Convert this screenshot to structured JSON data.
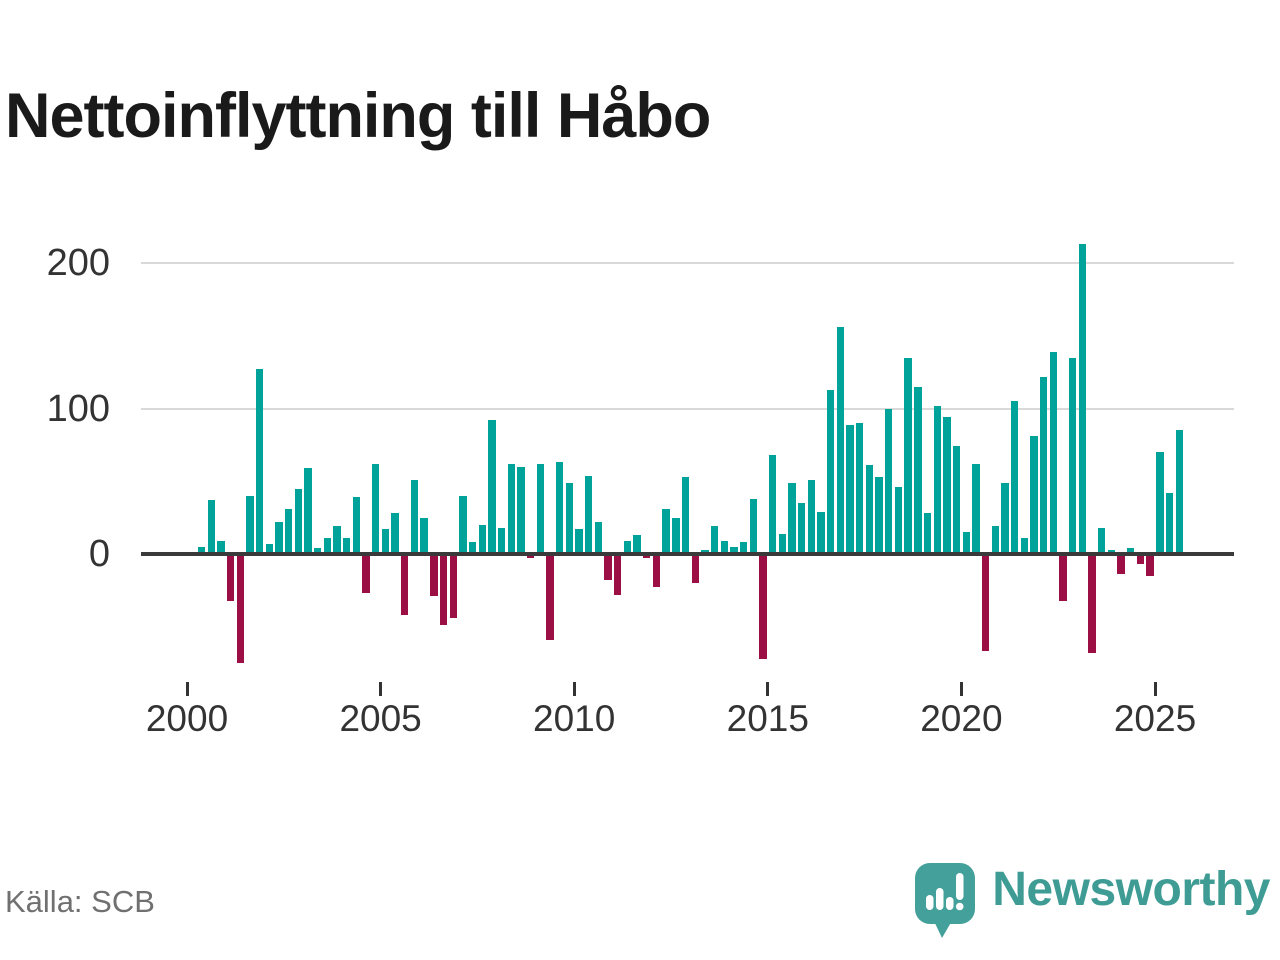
{
  "title": "Nettoinflyttning till Håbo",
  "footer": {
    "source": "Källa: SCB",
    "brand": "Newsworthy"
  },
  "chart_data": {
    "type": "bar",
    "title": "Nettoinflyttning till Håbo",
    "frequency": "quarterly",
    "start_year": 2000,
    "start_quarter": 1,
    "end_label": "2025 Q3",
    "x_tick_labels": [
      "2000",
      "2005",
      "2010",
      "2015",
      "2020",
      "2025"
    ],
    "y_ticks": [
      0,
      100,
      200
    ],
    "ylim": [
      -90,
      225
    ],
    "grid": "horizontal",
    "legend": "none",
    "positive_color": "#00a39a",
    "negative_color": "#9c0f44",
    "values": [
      0,
      5,
      37,
      9,
      -32,
      -75,
      40,
      127,
      7,
      22,
      31,
      45,
      59,
      4,
      11,
      19,
      11,
      39,
      -27,
      62,
      17,
      28,
      -42,
      51,
      25,
      -29,
      -49,
      -44,
      40,
      8,
      20,
      92,
      18,
      62,
      60,
      -3,
      62,
      -59,
      63,
      49,
      17,
      54,
      22,
      -18,
      -28,
      9,
      13,
      -3,
      -23,
      31,
      25,
      53,
      -20,
      3,
      19,
      9,
      5,
      8,
      38,
      -72,
      68,
      14,
      49,
      35,
      51,
      29,
      113,
      156,
      89,
      90,
      61,
      53,
      100,
      46,
      135,
      115,
      28,
      102,
      94,
      74,
      15,
      62,
      -67,
      19,
      49,
      105,
      11,
      81,
      122,
      139,
      -32,
      135,
      213,
      -68,
      18,
      3,
      -14,
      4,
      -7,
      -15,
      70,
      42,
      85
    ]
  }
}
